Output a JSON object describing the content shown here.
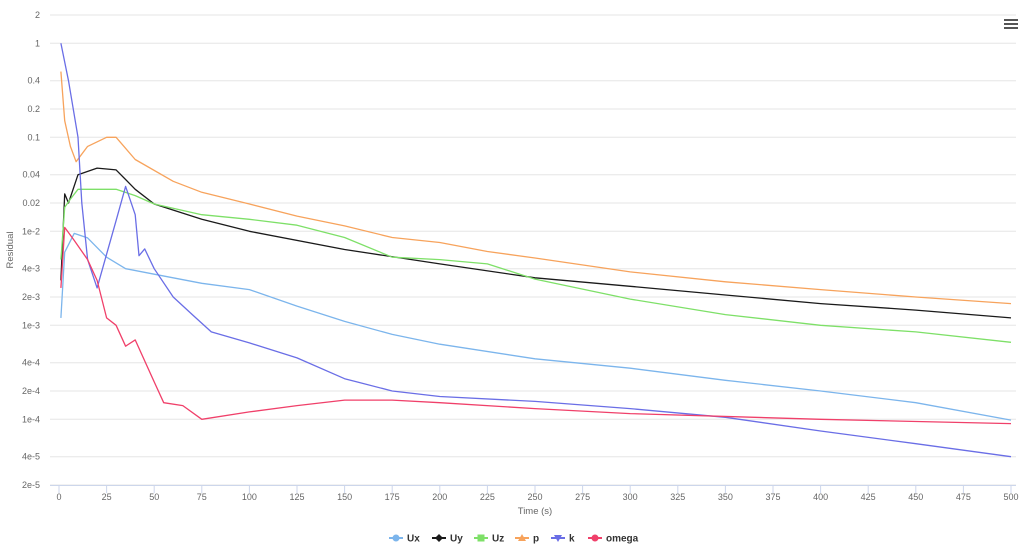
{
  "chart_data": {
    "type": "line",
    "title": "",
    "xlabel": "Time (s)",
    "ylabel": "Residual",
    "xlim": [
      0,
      500
    ],
    "ylim": [
      2e-05,
      2
    ],
    "yscale": "log",
    "grid": "horizontal",
    "legend_placement": "bottom",
    "xticks": [
      "0",
      "25",
      "50",
      "75",
      "100",
      "125",
      "150",
      "175",
      "200",
      "225",
      "250",
      "275",
      "300",
      "325",
      "350",
      "375",
      "400",
      "425",
      "450",
      "475",
      "500"
    ],
    "yticks": [
      {
        "v": 2,
        "label": "2"
      },
      {
        "v": 1,
        "label": "1"
      },
      {
        "v": 0.4,
        "label": "0.4"
      },
      {
        "v": 0.2,
        "label": "0.2"
      },
      {
        "v": 0.1,
        "label": "0.1"
      },
      {
        "v": 0.04,
        "label": "0.04"
      },
      {
        "v": 0.02,
        "label": "0.02"
      },
      {
        "v": 0.01,
        "label": "1e-2"
      },
      {
        "v": 0.004,
        "label": "4e-3"
      },
      {
        "v": 0.002,
        "label": "2e-3"
      },
      {
        "v": 0.001,
        "label": "1e-3"
      },
      {
        "v": 0.0004,
        "label": "4e-4"
      },
      {
        "v": 0.0002,
        "label": "2e-4"
      },
      {
        "v": 0.0001,
        "label": "1e-4"
      },
      {
        "v": 4e-05,
        "label": "4e-5"
      },
      {
        "v": 2e-05,
        "label": "2e-5"
      }
    ],
    "series": [
      {
        "name": "Ux",
        "color": "#7cb5ec",
        "marker": "circle",
        "points": [
          [
            1,
            0.0012
          ],
          [
            3,
            0.006
          ],
          [
            8,
            0.0095
          ],
          [
            15,
            0.0085
          ],
          [
            25,
            0.0053
          ],
          [
            35,
            0.004
          ],
          [
            50,
            0.0035
          ],
          [
            75,
            0.0028
          ],
          [
            100,
            0.0024
          ],
          [
            125,
            0.0016
          ],
          [
            150,
            0.0011
          ],
          [
            175,
            0.0008
          ],
          [
            200,
            0.00063
          ],
          [
            250,
            0.00044
          ],
          [
            300,
            0.00035
          ],
          [
            350,
            0.00026
          ],
          [
            400,
            0.0002
          ],
          [
            450,
            0.00015
          ],
          [
            500,
            9.8e-05
          ]
        ]
      },
      {
        "name": "Uy",
        "color": "#1a1a1a",
        "marker": "diamond",
        "points": [
          [
            1,
            0.003
          ],
          [
            3,
            0.025
          ],
          [
            5,
            0.02
          ],
          [
            10,
            0.04
          ],
          [
            20,
            0.047
          ],
          [
            30,
            0.045
          ],
          [
            40,
            0.028
          ],
          [
            50,
            0.0195
          ],
          [
            75,
            0.0134
          ],
          [
            100,
            0.01
          ],
          [
            150,
            0.0064
          ],
          [
            200,
            0.0045
          ],
          [
            250,
            0.0032
          ],
          [
            300,
            0.0026
          ],
          [
            350,
            0.0021
          ],
          [
            400,
            0.0017
          ],
          [
            450,
            0.00145
          ],
          [
            500,
            0.0012
          ]
        ]
      },
      {
        "name": "Uz",
        "color": "#7ee068",
        "marker": "square",
        "points": [
          [
            1,
            0.005
          ],
          [
            3,
            0.018
          ],
          [
            6,
            0.022
          ],
          [
            10,
            0.028
          ],
          [
            25,
            0.028
          ],
          [
            30,
            0.028
          ],
          [
            40,
            0.024
          ],
          [
            50,
            0.0195
          ],
          [
            75,
            0.015
          ],
          [
            100,
            0.0134
          ],
          [
            125,
            0.0116
          ],
          [
            150,
            0.0086
          ],
          [
            175,
            0.0053
          ],
          [
            200,
            0.005
          ],
          [
            225,
            0.0045
          ],
          [
            250,
            0.0031
          ],
          [
            300,
            0.0019
          ],
          [
            350,
            0.0013
          ],
          [
            400,
            0.001
          ],
          [
            450,
            0.00085
          ],
          [
            500,
            0.00066
          ]
        ]
      },
      {
        "name": "p",
        "color": "#f7a35c",
        "marker": "triangle",
        "points": [
          [
            1,
            0.5
          ],
          [
            3,
            0.15
          ],
          [
            6,
            0.08
          ],
          [
            9,
            0.055
          ],
          [
            15,
            0.08
          ],
          [
            25,
            0.1
          ],
          [
            30,
            0.1
          ],
          [
            40,
            0.058
          ],
          [
            60,
            0.034
          ],
          [
            75,
            0.026
          ],
          [
            100,
            0.0195
          ],
          [
            125,
            0.0145
          ],
          [
            150,
            0.0114
          ],
          [
            175,
            0.0086
          ],
          [
            200,
            0.0076
          ],
          [
            225,
            0.0061
          ],
          [
            250,
            0.0052
          ],
          [
            300,
            0.0037
          ],
          [
            350,
            0.0029
          ],
          [
            400,
            0.0024
          ],
          [
            450,
            0.002
          ],
          [
            500,
            0.0017
          ]
        ]
      },
      {
        "name": "k",
        "color": "#6a6ee6",
        "marker": "triangle-down",
        "points": [
          [
            1,
            1
          ],
          [
            5,
            0.4
          ],
          [
            10,
            0.1
          ],
          [
            12,
            0.02
          ],
          [
            15,
            0.005
          ],
          [
            20,
            0.0025
          ],
          [
            25,
            0.0057
          ],
          [
            30,
            0.013
          ],
          [
            35,
            0.03
          ],
          [
            40,
            0.015
          ],
          [
            42,
            0.0055
          ],
          [
            45,
            0.0065
          ],
          [
            50,
            0.004
          ],
          [
            60,
            0.002
          ],
          [
            70,
            0.0013
          ],
          [
            80,
            0.00085
          ],
          [
            100,
            0.00065
          ],
          [
            125,
            0.00045
          ],
          [
            150,
            0.00027
          ],
          [
            175,
            0.0002
          ],
          [
            200,
            0.000175
          ],
          [
            250,
            0.000155
          ],
          [
            300,
            0.00013
          ],
          [
            350,
            0.000105
          ],
          [
            400,
            7.5e-05
          ],
          [
            450,
            5.5e-05
          ],
          [
            500,
            4e-05
          ]
        ]
      },
      {
        "name": "omega",
        "color": "#f0406a",
        "marker": "circle",
        "points": [
          [
            1,
            0.0025
          ],
          [
            3,
            0.011
          ],
          [
            8,
            0.008
          ],
          [
            15,
            0.005
          ],
          [
            20,
            0.003
          ],
          [
            25,
            0.0012
          ],
          [
            30,
            0.001
          ],
          [
            35,
            0.0006
          ],
          [
            40,
            0.0007
          ],
          [
            50,
            0.00025
          ],
          [
            55,
            0.00015
          ],
          [
            65,
            0.00014
          ],
          [
            75,
            0.0001
          ],
          [
            100,
            0.00012
          ],
          [
            125,
            0.00014
          ],
          [
            150,
            0.00016
          ],
          [
            175,
            0.00016
          ],
          [
            200,
            0.00015
          ],
          [
            250,
            0.00013
          ],
          [
            300,
            0.000115
          ],
          [
            400,
            0.0001
          ],
          [
            500,
            9e-05
          ]
        ]
      }
    ]
  },
  "menu": {
    "icon": "hamburger-menu-icon"
  }
}
